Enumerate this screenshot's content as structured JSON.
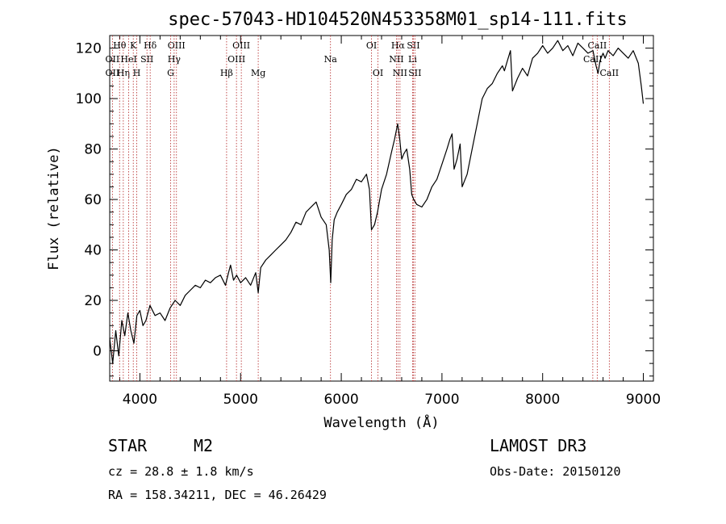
{
  "chart_data": {
    "type": "line",
    "title": "spec-57043-HD104520N453358M01_sp14-111.fits",
    "xlabel": "Wavelength (Å)",
    "ylabel": "Flux (relative)",
    "xlim": [
      3700,
      9100
    ],
    "ylim": [
      -12,
      125
    ],
    "xticks": [
      4000,
      5000,
      6000,
      7000,
      8000,
      9000
    ],
    "yticks": [
      0,
      20,
      40,
      60,
      80,
      100,
      120
    ],
    "series": [
      {
        "name": "flux",
        "x": [
          3700,
          3730,
          3760,
          3790,
          3820,
          3850,
          3880,
          3910,
          3940,
          3970,
          4000,
          4030,
          4060,
          4100,
          4150,
          4200,
          4250,
          4300,
          4350,
          4400,
          4450,
          4500,
          4550,
          4600,
          4650,
          4700,
          4750,
          4800,
          4850,
          4880,
          4900,
          4930,
          4960,
          5000,
          5050,
          5100,
          5150,
          5175,
          5200,
          5250,
          5300,
          5350,
          5400,
          5450,
          5500,
          5550,
          5600,
          5650,
          5700,
          5750,
          5800,
          5850,
          5880,
          5895,
          5910,
          5930,
          5960,
          6000,
          6050,
          6100,
          6150,
          6200,
          6250,
          6280,
          6300,
          6330,
          6360,
          6400,
          6450,
          6500,
          6530,
          6560,
          6580,
          6600,
          6620,
          6650,
          6680,
          6700,
          6720,
          6750,
          6800,
          6850,
          6900,
          6950,
          7000,
          7050,
          7080,
          7100,
          7120,
          7150,
          7180,
          7200,
          7250,
          7300,
          7350,
          7400,
          7450,
          7500,
          7550,
          7600,
          7620,
          7650,
          7680,
          7700,
          7750,
          7800,
          7850,
          7900,
          7950,
          8000,
          8050,
          8100,
          8150,
          8200,
          8250,
          8300,
          8350,
          8400,
          8450,
          8500,
          8530,
          8550,
          8570,
          8600,
          8620,
          8650,
          8700,
          8750,
          8800,
          8850,
          8900,
          8950,
          8980,
          9000
        ],
        "y": [
          5,
          -5,
          8,
          -2,
          12,
          6,
          15,
          8,
          3,
          14,
          16,
          10,
          12,
          18,
          14,
          15,
          12,
          17,
          20,
          18,
          22,
          24,
          26,
          25,
          28,
          27,
          29,
          30,
          26,
          31,
          34,
          28,
          30,
          27,
          29,
          26,
          31,
          23,
          33,
          36,
          38,
          40,
          42,
          44,
          47,
          51,
          50,
          55,
          57,
          59,
          53,
          50,
          40,
          27,
          44,
          52,
          55,
          58,
          62,
          64,
          68,
          67,
          70,
          64,
          48,
          50,
          55,
          64,
          70,
          79,
          84,
          90,
          84,
          76,
          78,
          80,
          72,
          62,
          60,
          58,
          57,
          60,
          65,
          68,
          74,
          80,
          84,
          86,
          72,
          76,
          82,
          65,
          70,
          80,
          90,
          100,
          104,
          106,
          110,
          113,
          111,
          115,
          119,
          103,
          108,
          112,
          109,
          116,
          118,
          121,
          118,
          120,
          123,
          119,
          121,
          117,
          122,
          120,
          118,
          119,
          113,
          110,
          115,
          118,
          116,
          119,
          117,
          120,
          118,
          116,
          119,
          114,
          105,
          98
        ]
      }
    ],
    "line_markers": [
      {
        "label": "Hθ",
        "x": 3798,
        "row": 1
      },
      {
        "label": "OII",
        "x": 3727,
        "row": 2
      },
      {
        "label": "OII",
        "x": 3727,
        "row": 3
      },
      {
        "label": "Hη",
        "x": 3835,
        "row": 3
      },
      {
        "label": "HeI",
        "x": 3889,
        "row": 2
      },
      {
        "label": "K",
        "x": 3934,
        "row": 1
      },
      {
        "label": "H",
        "x": 3969,
        "row": 3
      },
      {
        "label": "SII",
        "x": 4070,
        "row": 2
      },
      {
        "label": "Hδ",
        "x": 4102,
        "row": 1
      },
      {
        "label": "OIII",
        "x": 4363,
        "row": 1
      },
      {
        "label": "Hγ",
        "x": 4340,
        "row": 2
      },
      {
        "label": "G",
        "x": 4305,
        "row": 3
      },
      {
        "label": "Hβ",
        "x": 4861,
        "row": 3
      },
      {
        "label": "OIII",
        "x": 5007,
        "row": 1
      },
      {
        "label": "OIII",
        "x": 4959,
        "row": 2
      },
      {
        "label": "Mg",
        "x": 5175,
        "row": 3
      },
      {
        "label": "Na",
        "x": 5893,
        "row": 2
      },
      {
        "label": "OI",
        "x": 6300,
        "row": 1
      },
      {
        "label": "OI",
        "x": 6364,
        "row": 3
      },
      {
        "label": "Hα",
        "x": 6563,
        "row": 1
      },
      {
        "label": "SII",
        "x": 6716,
        "row": 1
      },
      {
        "label": "NII",
        "x": 6548,
        "row": 2
      },
      {
        "label": "Li",
        "x": 6708,
        "row": 2
      },
      {
        "label": "NII",
        "x": 6583,
        "row": 3
      },
      {
        "label": "SII",
        "x": 6731,
        "row": 3
      },
      {
        "label": "CaII",
        "x": 8542,
        "row": 1
      },
      {
        "label": "CaII",
        "x": 8498,
        "row": 2
      },
      {
        "label": "CaII",
        "x": 8662,
        "row": 3
      }
    ],
    "line_color": "#000000",
    "marker_color": "#b22222"
  },
  "info": {
    "object_class": "STAR",
    "subclass": "M2",
    "survey": "LAMOST DR3",
    "cz": "cz = 28.8 ± 1.8 km/s",
    "obs_date": "Obs-Date: 20150120",
    "coords": "RA = 158.34211, DEC =  46.26429"
  }
}
